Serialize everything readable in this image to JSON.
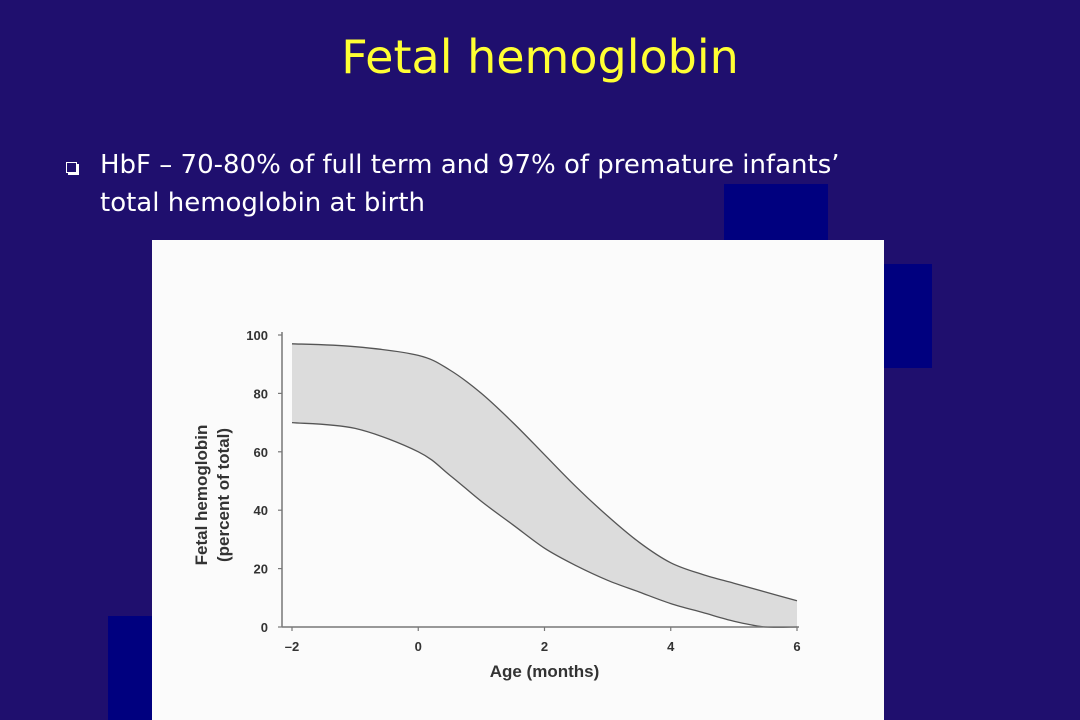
{
  "slide": {
    "title": "Fetal hemoglobin",
    "bullet": {
      "icon": "square-bullet-icon",
      "line1": "HbF – 70-80% of full term and 97% of premature infants’",
      "line2": "total hemoglobin at birth"
    }
  },
  "colors": {
    "background": "#1f0f6e",
    "title": "#ffff33",
    "accent_blocks": "#00007f",
    "band_fill": "#dcdcdc"
  },
  "chart_data": {
    "type": "area",
    "xlabel": "Age (months)",
    "ylabel_line1": "Fetal hemoglobin",
    "ylabel_line2": "(percent of total)",
    "xlim": [
      -2,
      6
    ],
    "ylim": [
      0,
      100
    ],
    "xticks": [
      -2,
      0,
      2,
      4,
      6
    ],
    "yticks": [
      0,
      20,
      40,
      60,
      80,
      100
    ],
    "x_tick_labels": [
      "–2",
      "0",
      "2",
      "4",
      "6"
    ],
    "y_tick_labels": [
      "0",
      "20",
      "40",
      "60",
      "80",
      "100"
    ],
    "grid": false,
    "series": [
      {
        "x": [
          -2,
          -1,
          0,
          0.5,
          1,
          1.5,
          2,
          2.5,
          3,
          3.5,
          4,
          4.5,
          5,
          5.5,
          6
        ],
        "upper": [
          97,
          96,
          93,
          88,
          80,
          70,
          59,
          48,
          38,
          29,
          22,
          18,
          15,
          12,
          9
        ],
        "lower": [
          70,
          68,
          60,
          52,
          43,
          35,
          27,
          21,
          16,
          12,
          8,
          5,
          2,
          0,
          0
        ]
      }
    ]
  }
}
